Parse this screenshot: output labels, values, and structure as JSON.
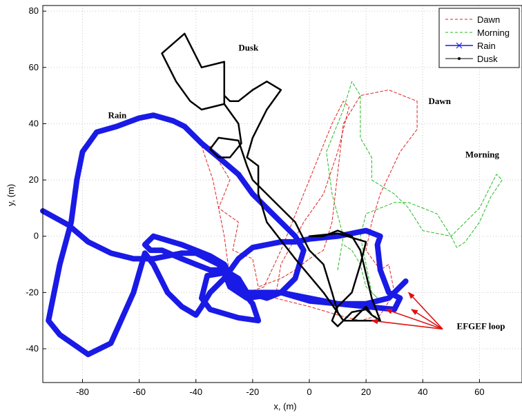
{
  "chart_data": {
    "type": "line",
    "title": "",
    "xlabel": "x, (m)",
    "ylabel": "y, (m)",
    "xlim": [
      -94,
      75
    ],
    "ylim": [
      -52,
      82
    ],
    "xticks": [
      -80,
      -60,
      -40,
      -20,
      0,
      20,
      40,
      60
    ],
    "yticks": [
      -40,
      -20,
      0,
      20,
      40,
      60,
      80
    ],
    "grid": true,
    "legend_position": "top-right",
    "series": [
      {
        "name": "Dawn",
        "color": "#e02020",
        "style": "dashed",
        "points": [
          [
            -35,
            32
          ],
          [
            -28,
            20
          ],
          [
            -32,
            10
          ],
          [
            -25,
            5
          ],
          [
            -27,
            -5
          ],
          [
            -20,
            -8
          ],
          [
            -18,
            -18
          ],
          [
            -10,
            -15
          ],
          [
            -5,
            -12
          ],
          [
            0,
            -8
          ],
          [
            5,
            -5
          ],
          [
            8,
            5
          ],
          [
            12,
            40
          ],
          [
            18,
            50
          ],
          [
            28,
            52
          ],
          [
            38,
            48
          ],
          [
            38,
            38
          ],
          [
            32,
            30
          ],
          [
            25,
            15
          ],
          [
            22,
            5
          ],
          [
            20,
            -5
          ],
          [
            25,
            -12
          ],
          [
            28,
            -10
          ],
          [
            30,
            -20
          ],
          [
            25,
            -28
          ],
          [
            18,
            -30
          ],
          [
            10,
            -28
          ],
          [
            0,
            -25
          ],
          [
            -12,
            -22
          ],
          [
            -10,
            -10
          ],
          [
            -2,
            5
          ],
          [
            5,
            15
          ],
          [
            10,
            30
          ],
          [
            14,
            46
          ],
          [
            12,
            48
          ],
          [
            8,
            40
          ],
          [
            2,
            25
          ],
          [
            -4,
            10
          ],
          [
            -10,
            -5
          ],
          [
            -16,
            -18
          ],
          [
            -22,
            -20
          ],
          [
            -28,
            -15
          ],
          [
            -30,
            0
          ],
          [
            -34,
            20
          ],
          [
            -38,
            32
          ]
        ]
      },
      {
        "name": "Morning",
        "color": "#22bb22",
        "style": "dashed",
        "points": [
          [
            10,
            -12
          ],
          [
            12,
            0
          ],
          [
            8,
            15
          ],
          [
            6,
            30
          ],
          [
            12,
            45
          ],
          [
            15,
            55
          ],
          [
            18,
            50
          ],
          [
            18,
            35
          ],
          [
            22,
            28
          ],
          [
            22,
            20
          ],
          [
            30,
            15
          ],
          [
            35,
            10
          ],
          [
            40,
            2
          ],
          [
            50,
            0
          ],
          [
            55,
            5
          ],
          [
            60,
            10
          ],
          [
            66,
            22
          ],
          [
            68,
            20
          ],
          [
            64,
            14
          ],
          [
            60,
            5
          ],
          [
            55,
            -2
          ],
          [
            52,
            -4
          ],
          [
            50,
            0
          ],
          [
            45,
            8
          ],
          [
            40,
            10
          ],
          [
            35,
            12
          ],
          [
            30,
            12
          ],
          [
            25,
            10
          ],
          [
            20,
            8
          ],
          [
            18,
            0
          ],
          [
            20,
            -10
          ],
          [
            22,
            -20
          ],
          [
            24,
            -22
          ],
          [
            20,
            -18
          ],
          [
            18,
            -10
          ],
          [
            15,
            -5
          ],
          [
            12,
            -3
          ]
        ]
      },
      {
        "name": "Rain",
        "color": "#1a1ae6",
        "style": "solid",
        "marker": "x",
        "points": [
          [
            -94,
            9
          ],
          [
            -85,
            4
          ],
          [
            -78,
            -2
          ],
          [
            -70,
            -6
          ],
          [
            -62,
            -8
          ],
          [
            -55,
            -8
          ],
          [
            -45,
            -6
          ],
          [
            -40,
            -6
          ],
          [
            -32,
            -10
          ],
          [
            -28,
            -15
          ],
          [
            -25,
            -20
          ],
          [
            -20,
            -20
          ],
          [
            -10,
            -20
          ],
          [
            0,
            -23
          ],
          [
            10,
            -24
          ],
          [
            20,
            -25
          ],
          [
            30,
            -26
          ],
          [
            32,
            -22
          ],
          [
            28,
            -20
          ],
          [
            25,
            -12
          ],
          [
            24,
            -3
          ],
          [
            25,
            0
          ],
          [
            20,
            2
          ],
          [
            10,
            0
          ],
          [
            0,
            -1
          ],
          [
            -5,
            -2
          ],
          [
            -10,
            -2
          ],
          [
            -15,
            -3
          ],
          [
            -20,
            -4
          ],
          [
            -25,
            -8
          ],
          [
            -30,
            -15
          ],
          [
            -35,
            -20
          ],
          [
            -38,
            -25
          ],
          [
            -40,
            -28
          ],
          [
            -45,
            -25
          ],
          [
            -50,
            -20
          ],
          [
            -55,
            -10
          ],
          [
            -58,
            -6
          ],
          [
            -62,
            -20
          ],
          [
            -70,
            -38
          ],
          [
            -78,
            -42
          ],
          [
            -88,
            -35
          ],
          [
            -92,
            -30
          ],
          [
            -88,
            -10
          ],
          [
            -84,
            5
          ],
          [
            -82,
            20
          ],
          [
            -80,
            30
          ],
          [
            -75,
            37
          ],
          [
            -68,
            39
          ],
          [
            -60,
            42
          ],
          [
            -55,
            43
          ],
          [
            -48,
            41
          ],
          [
            -44,
            39
          ],
          [
            -38,
            33
          ],
          [
            -32,
            28
          ],
          [
            -25,
            22
          ],
          [
            -20,
            15
          ],
          [
            -15,
            10
          ],
          [
            -5,
            0
          ],
          [
            -2,
            -5
          ],
          [
            -5,
            -15
          ],
          [
            -10,
            -20
          ],
          [
            -15,
            -22
          ],
          [
            -22,
            -20
          ],
          [
            -25,
            -15
          ],
          [
            -30,
            -12
          ],
          [
            -35,
            -12
          ],
          [
            -40,
            -10
          ],
          [
            -45,
            -8
          ],
          [
            -52,
            -5
          ],
          [
            -56,
            -5
          ],
          [
            -58,
            -3
          ],
          [
            -55,
            0
          ],
          [
            -45,
            -3
          ],
          [
            -40,
            -5
          ],
          [
            -35,
            -7
          ],
          [
            -30,
            -10
          ],
          [
            -28,
            -14
          ],
          [
            -20,
            -24
          ],
          [
            -18,
            -30
          ],
          [
            -25,
            -29
          ],
          [
            -35,
            -26
          ],
          [
            -38,
            -22
          ],
          [
            -36,
            -14
          ],
          [
            -30,
            -13
          ],
          [
            -28,
            -18
          ],
          [
            -22,
            -22
          ],
          [
            -15,
            -21
          ],
          [
            -10,
            -20
          ],
          [
            0,
            -22
          ],
          [
            10,
            -24
          ],
          [
            20,
            -24
          ],
          [
            28,
            -22
          ],
          [
            32,
            -18
          ],
          [
            34,
            -16
          ]
        ]
      },
      {
        "name": "Dusk",
        "color": "#000000",
        "style": "solid",
        "marker": "dot",
        "points": [
          [
            -30,
            47
          ],
          [
            -30,
            62
          ],
          [
            -38,
            60
          ],
          [
            -44,
            72
          ],
          [
            -52,
            65
          ],
          [
            -47,
            55
          ],
          [
            -42,
            48
          ],
          [
            -38,
            45
          ],
          [
            -30,
            47
          ],
          [
            -25,
            40
          ],
          [
            -24,
            33
          ],
          [
            -28,
            28
          ],
          [
            -32,
            28
          ],
          [
            -35,
            31
          ],
          [
            -32,
            35
          ],
          [
            -25,
            34
          ],
          [
            -22,
            25
          ],
          [
            -20,
            20
          ],
          [
            -15,
            15
          ],
          [
            -10,
            10
          ],
          [
            -5,
            5
          ],
          [
            0,
            -5
          ],
          [
            5,
            -10
          ],
          [
            8,
            -20
          ],
          [
            10,
            -27
          ],
          [
            12,
            -30
          ],
          [
            15,
            -30
          ],
          [
            18,
            -27
          ],
          [
            20,
            -25
          ],
          [
            22,
            -28
          ],
          [
            25,
            -30
          ],
          [
            22,
            -22
          ],
          [
            18,
            -5
          ],
          [
            15,
            0
          ],
          [
            10,
            2
          ],
          [
            5,
            0
          ],
          [
            0,
            0
          ],
          [
            10,
            1
          ],
          [
            20,
            -2
          ],
          [
            18,
            -10
          ],
          [
            15,
            -20
          ],
          [
            10,
            -25
          ],
          [
            8,
            -30
          ],
          [
            10,
            -32
          ],
          [
            15,
            -27
          ],
          [
            20,
            -26
          ],
          [
            22,
            -28
          ],
          [
            25,
            -30
          ],
          [
            20,
            -30
          ],
          [
            12,
            -30
          ],
          [
            5,
            -20
          ],
          [
            -5,
            -8
          ],
          [
            -15,
            5
          ],
          [
            -18,
            15
          ],
          [
            -18,
            25
          ],
          [
            -22,
            28
          ],
          [
            -20,
            35
          ],
          [
            -15,
            45
          ],
          [
            -10,
            52
          ],
          [
            -15,
            55
          ],
          [
            -20,
            52
          ],
          [
            -25,
            48
          ],
          [
            -28,
            48
          ],
          [
            -30,
            50
          ]
        ]
      }
    ],
    "annotations": [
      {
        "text": "Dusk",
        "x": -25,
        "y": 66
      },
      {
        "text": "Dawn",
        "x": 42,
        "y": 47
      },
      {
        "text": "Morning",
        "x": 55,
        "y": 28
      },
      {
        "text": "Rain",
        "x": -71,
        "y": 42
      },
      {
        "text": "EFGEF loop",
        "x": 52,
        "y": -33
      }
    ],
    "arrows": {
      "from": [
        47,
        -33
      ],
      "to": [
        [
          35,
          -20
        ],
        [
          27,
          -26
        ],
        [
          36,
          -26
        ],
        [
          22,
          -30
        ]
      ]
    }
  }
}
